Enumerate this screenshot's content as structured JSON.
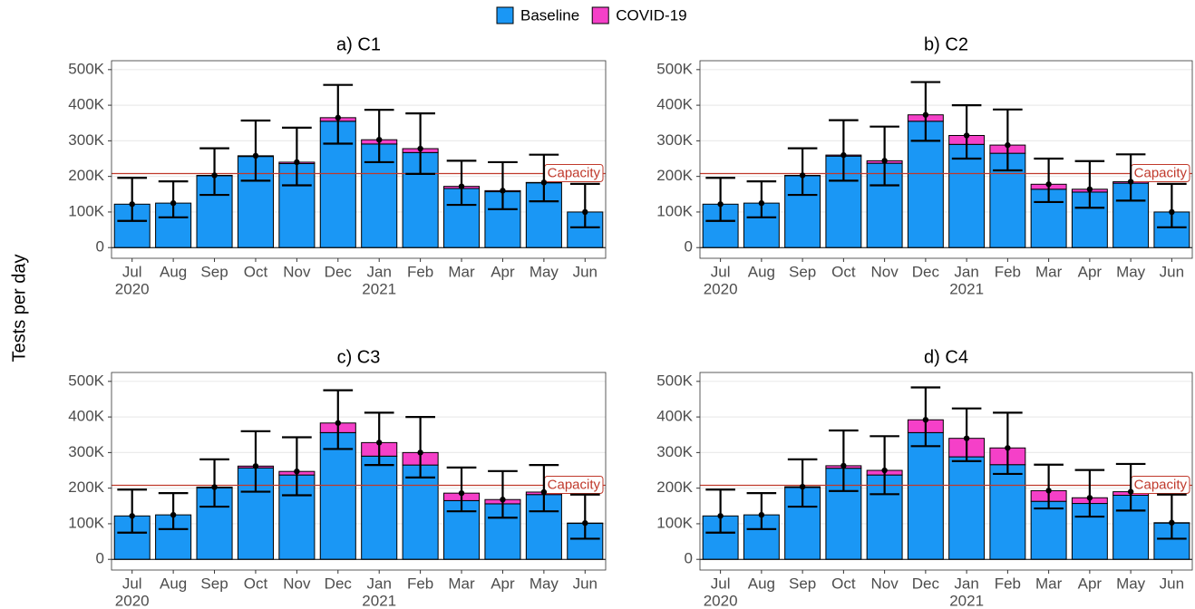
{
  "ylabel": "Tests per day",
  "chart_data": [
    {
      "type": "bar",
      "title": "a) C1",
      "categories": [
        "Jul",
        "Aug",
        "Sep",
        "Oct",
        "Nov",
        "Dec",
        "Jan",
        "Feb",
        "Mar",
        "Apr",
        "May",
        "Jun"
      ],
      "year_labels": [
        "2020",
        null,
        null,
        null,
        null,
        null,
        "2021",
        null,
        null,
        null,
        null,
        null
      ],
      "series": [
        {
          "name": "Baseline",
          "color": "#1a97f5",
          "values": [
            122000,
            125000,
            202000,
            256000,
            236000,
            355000,
            291000,
            267000,
            166000,
            157000,
            182000,
            100000
          ]
        },
        {
          "name": "COVID-19",
          "color": "#f540c8",
          "values": [
            0,
            0,
            1000,
            2000,
            4000,
            10000,
            12000,
            11000,
            6000,
            3000,
            1000,
            0
          ]
        }
      ],
      "mean": [
        122000,
        125000,
        203000,
        258000,
        240000,
        365000,
        303000,
        278000,
        172000,
        160000,
        183000,
        100000
      ],
      "lower": [
        75000,
        85000,
        148000,
        188000,
        175000,
        292000,
        240000,
        207000,
        120000,
        108000,
        130000,
        57000
      ],
      "upper": [
        196000,
        186000,
        279000,
        357000,
        337000,
        457000,
        387000,
        377000,
        244000,
        240000,
        261000,
        179000
      ],
      "reference_line": {
        "value": 208000,
        "label": "Capacity",
        "color": "#c0392b"
      },
      "ylim": [
        -30000,
        525000
      ],
      "yticks": [
        0,
        {
          "value": 100000,
          "label": "100K"
        },
        {
          "value": 200000,
          "label": "200K"
        },
        {
          "value": 300000,
          "label": "300K"
        },
        {
          "value": 400000,
          "label": "400K"
        },
        {
          "value": 500000,
          "label": "500K"
        }
      ],
      "grid": true
    },
    {
      "type": "bar",
      "title": "b) C2",
      "categories": [
        "Jul",
        "Aug",
        "Sep",
        "Oct",
        "Nov",
        "Dec",
        "Jan",
        "Feb",
        "Mar",
        "Apr",
        "May",
        "Jun"
      ],
      "year_labels": [
        "2020",
        null,
        null,
        null,
        null,
        null,
        "2021",
        null,
        null,
        null,
        null,
        null
      ],
      "series": [
        {
          "name": "Baseline",
          "color": "#1a97f5",
          "values": [
            122000,
            125000,
            202000,
            257000,
            237000,
            355000,
            290000,
            265000,
            164000,
            156000,
            181000,
            100000
          ]
        },
        {
          "name": "COVID-19",
          "color": "#f540c8",
          "values": [
            0,
            0,
            1000,
            3000,
            7000,
            18000,
            25000,
            23000,
            14000,
            8000,
            4000,
            0
          ]
        }
      ],
      "mean": [
        122000,
        125000,
        203000,
        260000,
        244000,
        373000,
        315000,
        288000,
        178000,
        164000,
        185000,
        100000
      ],
      "lower": [
        75000,
        85000,
        148000,
        188000,
        175000,
        300000,
        250000,
        217000,
        128000,
        112000,
        132000,
        57000
      ],
      "upper": [
        196000,
        186000,
        279000,
        358000,
        340000,
        465000,
        400000,
        388000,
        250000,
        243000,
        262000,
        179000
      ],
      "reference_line": {
        "value": 208000,
        "label": "Capacity",
        "color": "#c0392b"
      },
      "ylim": [
        -30000,
        525000
      ],
      "yticks": [
        0,
        {
          "value": 100000,
          "label": "100K"
        },
        {
          "value": 200000,
          "label": "200K"
        },
        {
          "value": 300000,
          "label": "300K"
        },
        {
          "value": 400000,
          "label": "400K"
        },
        {
          "value": 500000,
          "label": "500K"
        }
      ],
      "grid": true
    },
    {
      "type": "bar",
      "title": "c) C3",
      "categories": [
        "Jul",
        "Aug",
        "Sep",
        "Oct",
        "Nov",
        "Dec",
        "Jan",
        "Feb",
        "Mar",
        "Apr",
        "May",
        "Jun"
      ],
      "year_labels": [
        "2020",
        null,
        null,
        null,
        null,
        null,
        "2021",
        null,
        null,
        null,
        null,
        null
      ],
      "series": [
        {
          "name": "Baseline",
          "color": "#1a97f5",
          "values": [
            122000,
            125000,
            201000,
            257000,
            237000,
            356000,
            290000,
            265000,
            165000,
            156000,
            182000,
            101000
          ]
        },
        {
          "name": "COVID-19",
          "color": "#f540c8",
          "values": [
            0,
            0,
            2000,
            5000,
            10000,
            27000,
            38000,
            35000,
            21000,
            12000,
            7000,
            1000
          ]
        }
      ],
      "mean": [
        122000,
        125000,
        203000,
        262000,
        247000,
        383000,
        328000,
        300000,
        186000,
        168000,
        189000,
        102000
      ],
      "lower": [
        75000,
        85000,
        148000,
        190000,
        180000,
        310000,
        265000,
        230000,
        135000,
        117000,
        135000,
        58000
      ],
      "upper": [
        196000,
        186000,
        281000,
        360000,
        343000,
        475000,
        412000,
        400000,
        258000,
        248000,
        265000,
        182000
      ],
      "reference_line": {
        "value": 208000,
        "label": "Capacity",
        "color": "#c0392b"
      },
      "ylim": [
        -30000,
        525000
      ],
      "yticks": [
        0,
        {
          "value": 100000,
          "label": "100K"
        },
        {
          "value": 200000,
          "label": "200K"
        },
        {
          "value": 300000,
          "label": "300K"
        },
        {
          "value": 400000,
          "label": "400K"
        },
        {
          "value": 500000,
          "label": "500K"
        }
      ],
      "grid": true
    },
    {
      "type": "bar",
      "title": "d) C4",
      "categories": [
        "Jul",
        "Aug",
        "Sep",
        "Oct",
        "Nov",
        "Dec",
        "Jan",
        "Feb",
        "Mar",
        "Apr",
        "May",
        "Jun"
      ],
      "year_labels": [
        "2020",
        null,
        null,
        null,
        null,
        null,
        "2021",
        null,
        null,
        null,
        null,
        null
      ],
      "series": [
        {
          "name": "Baseline",
          "color": "#1a97f5",
          "values": [
            122000,
            125000,
            202000,
            256000,
            237000,
            356000,
            288000,
            266000,
            163000,
            157000,
            180000,
            102000
          ]
        },
        {
          "name": "COVID-19",
          "color": "#f540c8",
          "values": [
            0,
            0,
            2000,
            7000,
            13000,
            36000,
            52000,
            47000,
            30000,
            16000,
            10000,
            1000
          ]
        }
      ],
      "mean": [
        122000,
        125000,
        204000,
        263000,
        250000,
        392000,
        340000,
        313000,
        193000,
        173000,
        190000,
        103000
      ],
      "lower": [
        75000,
        85000,
        148000,
        192000,
        183000,
        318000,
        276000,
        240000,
        143000,
        120000,
        137000,
        58000
      ],
      "upper": [
        196000,
        186000,
        281000,
        362000,
        346000,
        483000,
        424000,
        412000,
        266000,
        251000,
        268000,
        182000
      ],
      "reference_line": {
        "value": 208000,
        "label": "Capacity",
        "color": "#c0392b"
      },
      "ylim": [
        -30000,
        525000
      ],
      "yticks": [
        0,
        {
          "value": 100000,
          "label": "100K"
        },
        {
          "value": 200000,
          "label": "200K"
        },
        {
          "value": 300000,
          "label": "300K"
        },
        {
          "value": 400000,
          "label": "400K"
        },
        {
          "value": 500000,
          "label": "500K"
        }
      ],
      "grid": true
    }
  ]
}
